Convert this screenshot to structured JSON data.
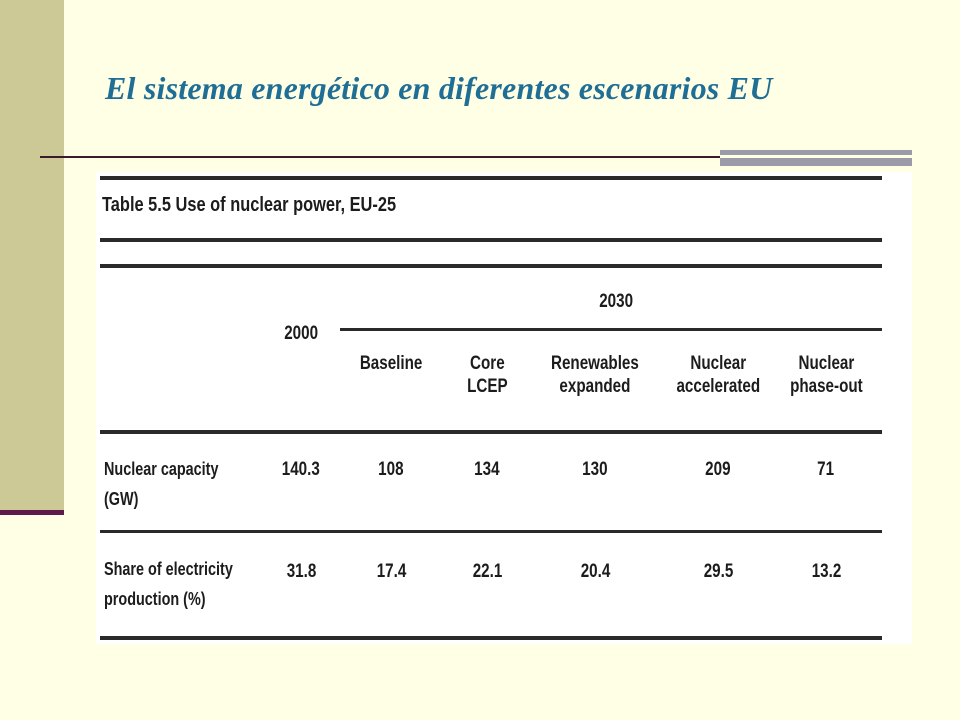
{
  "slide": {
    "title": "El sistema energético en diferentes escenarios EU"
  },
  "table": {
    "caption": "Table 5.5    Use of nuclear power, EU-25",
    "year_2000": "2000",
    "year_2030": "2030",
    "scenarios": [
      "Baseline",
      "Core\nLCEP",
      "Renewables\nexpanded",
      "Nuclear\naccelerated",
      "Nuclear\nphase-out"
    ],
    "rows": [
      {
        "label": "Nuclear capacity\n(GW)",
        "values": [
          "140.3",
          "108",
          "134",
          "130",
          "209",
          "71"
        ]
      },
      {
        "label": "Share of electricity\nproduction (%)",
        "values": [
          "31.8",
          "17.4",
          "22.1",
          "20.4",
          "29.5",
          "13.2"
        ]
      }
    ]
  }
}
